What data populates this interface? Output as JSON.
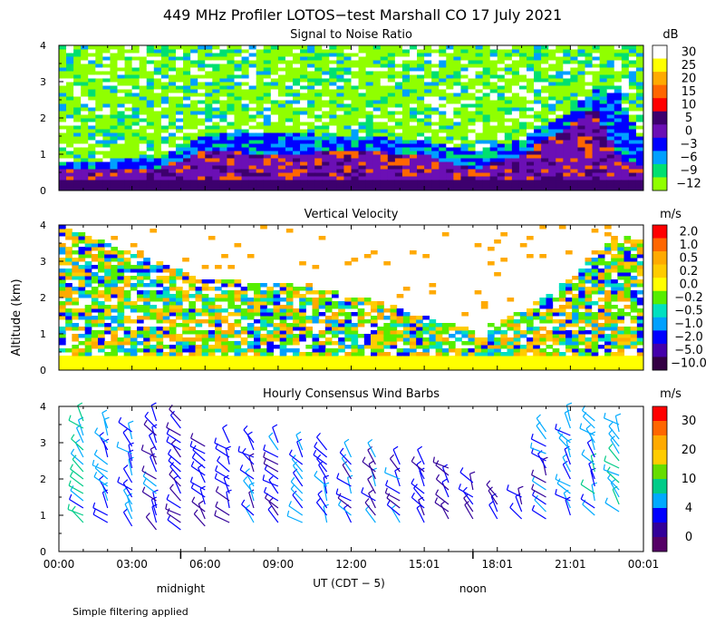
{
  "figure": {
    "title": "449 MHz Profiler LOTOS−test Marshall CO 17 July 2021",
    "y_axis_label": "Altitude (km)",
    "x_axis_label": "UT  (CDT − 5)",
    "day_markers": [
      {
        "label": "midnight",
        "x_hour": 5
      },
      {
        "label": "noon",
        "x_hour": 17
      }
    ],
    "footnote": "Simple filtering applied",
    "x_ticks": [
      "00:00",
      "03:00",
      "06:00",
      "09:00",
      "12:00",
      "15:01",
      "18:01",
      "21:01",
      "00:01"
    ],
    "x_range_hours": [
      0,
      24
    ]
  },
  "chart_data": [
    {
      "type": "heatmap",
      "title": "Signal to Noise Ratio",
      "unit": "dB",
      "xlabel": "UT",
      "ylabel": "Altitude (km)",
      "ylim": [
        0,
        4
      ],
      "yticks": [
        0,
        1,
        2,
        3,
        4
      ],
      "colorbar": {
        "labels": [
          "30",
          "25",
          "20",
          "15",
          "10",
          "5",
          "0",
          "−3",
          "−6",
          "−9",
          "−12"
        ],
        "colors": [
          "#ffffff",
          "#ffff00",
          "#ffaa00",
          "#ff6600",
          "#ff0000",
          "#3d006e",
          "#6b0fb5",
          "#0000ff",
          "#00a0ff",
          "#00e070",
          "#90ff00"
        ]
      },
      "features": {
        "boundary_layer_top_km": [
          [
            0,
            0.8
          ],
          [
            4,
            0.9
          ],
          [
            6,
            1.6
          ],
          [
            9,
            1.6
          ],
          [
            12,
            1.5
          ],
          [
            15,
            1.4
          ],
          [
            17,
            1.1
          ],
          [
            19,
            1.4
          ],
          [
            21,
            2.2
          ],
          [
            22,
            2.8
          ],
          [
            23,
            2.7
          ],
          [
            24,
            1.3
          ]
        ],
        "strong_echo_top_km": [
          [
            0,
            0.55
          ],
          [
            4,
            0.6
          ],
          [
            6,
            1.1
          ],
          [
            9,
            1.0
          ],
          [
            12,
            1.1
          ],
          [
            15,
            1.0
          ],
          [
            17,
            0.6
          ],
          [
            19,
            1.0
          ],
          [
            21,
            1.8
          ],
          [
            22,
            2.3
          ],
          [
            23,
            0.9
          ],
          [
            24,
            0.7
          ]
        ],
        "noise_floor_top_km": 4
      }
    },
    {
      "type": "heatmap",
      "title": "Vertical Velocity",
      "unit": "m/s",
      "xlabel": "UT",
      "ylabel": "Altitude (km)",
      "ylim": [
        0,
        4
      ],
      "yticks": [
        0,
        1,
        2,
        3,
        4
      ],
      "colorbar": {
        "labels": [
          "2.0",
          "1.0",
          "0.5",
          "0.2",
          "0.0",
          "−0.2",
          "−0.5",
          "−1.0",
          "−2.0",
          "−5.0",
          "−10.0"
        ],
        "colors": [
          "#ff0000",
          "#ff6600",
          "#ffaa00",
          "#ffcc00",
          "#ffff00",
          "#55ee00",
          "#00e0c0",
          "#00a0ff",
          "#0000ff",
          "#4400aa",
          "#330044"
        ]
      },
      "features": {
        "data_top_km": [
          [
            0,
            4.0
          ],
          [
            2,
            3.5
          ],
          [
            4,
            3.0
          ],
          [
            6,
            2.5
          ],
          [
            9,
            2.4
          ],
          [
            12,
            2.1
          ],
          [
            15,
            1.5
          ],
          [
            17,
            1.1
          ],
          [
            19,
            1.6
          ],
          [
            21,
            2.5
          ],
          [
            23,
            3.8
          ],
          [
            24,
            3.6
          ]
        ],
        "near_surface_updraft_km": 0.4
      }
    },
    {
      "type": "scatter",
      "subtype": "wind_barbs",
      "title": "Hourly Consensus Wind Barbs",
      "unit": "m/s",
      "xlabel": "UT",
      "ylabel": "Altitude (km)",
      "ylim": [
        0,
        4
      ],
      "yticks": [
        0,
        1,
        2,
        3,
        4
      ],
      "colorbar": {
        "labels": [
          "30",
          "20",
          "10",
          "4",
          "0"
        ],
        "colors": [
          "#ff0000",
          "#ff6600",
          "#ffaa00",
          "#ffcc00",
          "#66dd00",
          "#00cc88",
          "#00aaff",
          "#0000ff",
          "#330099",
          "#550066"
        ]
      },
      "hours": [
        0,
        1,
        2,
        3,
        4,
        5,
        6,
        7,
        8,
        9,
        10,
        11,
        12,
        13,
        14,
        15,
        16,
        17,
        18,
        19,
        20,
        21,
        22,
        23,
        24
      ],
      "barb_top_km": [
        3.8,
        3.6,
        3.4,
        3.4,
        3.7,
        3.7,
        3.0,
        3.0,
        3.0,
        3.0,
        2.9,
        2.8,
        2.7,
        2.7,
        2.5,
        2.5,
        2.3,
        2.0,
        1.5,
        1.5,
        3.3,
        3.6,
        3.7,
        3.5,
        3.4
      ],
      "barb_bottom_km": [
        0.9,
        0.8,
        0.8,
        0.7,
        0.6,
        0.6,
        0.7,
        0.8,
        0.8,
        0.8,
        0.8,
        0.8,
        0.8,
        0.8,
        0.8,
        0.8,
        0.9,
        0.9,
        0.9,
        0.9,
        0.9,
        1.0,
        1.0,
        1.1,
        1.1
      ],
      "typical_speed_ms": [
        12,
        11,
        9,
        8,
        6,
        5,
        5,
        5,
        6,
        7,
        8,
        8,
        7,
        6,
        6,
        5,
        5,
        4,
        4,
        5,
        7,
        9,
        10,
        11,
        11
      ]
    }
  ]
}
